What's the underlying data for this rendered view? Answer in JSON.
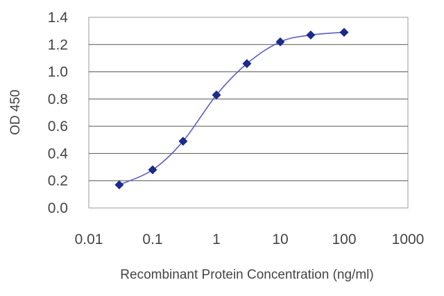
{
  "chart_data": {
    "type": "line",
    "title": "",
    "xlabel": "Recombinant Protein Concentration (ng/ml)",
    "ylabel": "OD 450",
    "x_scale": "log",
    "xlim": [
      0.01,
      1000
    ],
    "ylim": [
      0,
      1.4
    ],
    "x_ticks": [
      "0.01",
      "0.1",
      "1",
      "10",
      "100",
      "1000"
    ],
    "y_ticks": [
      "0.0",
      "0.2",
      "0.4",
      "0.6",
      "0.8",
      "1.0",
      "1.2",
      "1.4"
    ],
    "grid": "horizontal",
    "series": [
      {
        "x": [
          0.03,
          0.1,
          0.3,
          1,
          3,
          10,
          30,
          100
        ],
        "y": [
          0.17,
          0.28,
          0.49,
          0.83,
          1.06,
          1.22,
          1.27,
          1.29
        ]
      }
    ],
    "colors": {
      "line": "#5b5bc9",
      "marker": "#1c2a8c",
      "grid": "#555555",
      "frame": "#999999"
    }
  }
}
